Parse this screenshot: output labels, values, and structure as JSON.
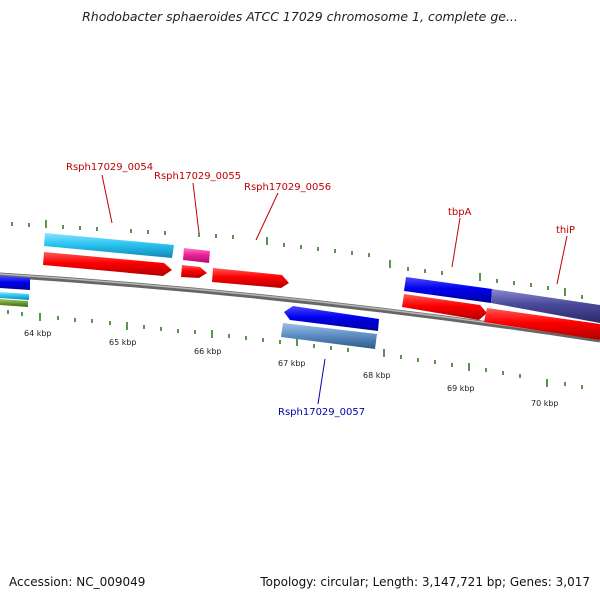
{
  "title": "Rhodobacter sphaeroides ATCC 17029 chromosome 1, complete ge...",
  "footer": {
    "accession": "Accession: NC_009049",
    "summary": "Topology: circular; Length: 3,147,721 bp; Genes: 3,017"
  },
  "colors": {
    "backbone": "#8a8a8a",
    "tick": "#2e7d1e",
    "label_red": "#c00000",
    "label_blue": "#0000aa",
    "gene_red": "#ff0000",
    "gene_blue": "#0000ee",
    "gene_cyan": "#29c4f0",
    "gene_pink": "#f0209a",
    "gene_steel": "#5a8ac0",
    "gene_slate": "#4a4a9a",
    "gene_green": "#6a9a30"
  },
  "scale": {
    "labels": [
      "64 kbp",
      "65 kbp",
      "66 kbp",
      "67 kbp",
      "68 kbp",
      "69 kbp",
      "70 kbp"
    ]
  },
  "genes": [
    {
      "name": "Rsph17029_0054",
      "color": "red"
    },
    {
      "name": "Rsph17029_0055",
      "color": "red"
    },
    {
      "name": "Rsph17029_0056",
      "color": "red"
    },
    {
      "name": "Rsph17029_0057",
      "color": "blue"
    },
    {
      "name": "tbpA",
      "color": "red"
    },
    {
      "name": "thiP",
      "color": "red"
    }
  ]
}
